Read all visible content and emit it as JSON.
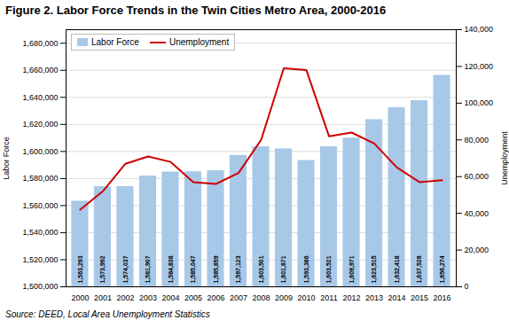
{
  "chart_data": {
    "type": "bar",
    "title": "Figure 2. Labor Force Trends in the Twin Cities Metro Area, 2000-2016",
    "caption": "Source: DEED, Local Area Unemployment Statistics",
    "x": [
      2000,
      2001,
      2002,
      2003,
      2004,
      2005,
      2006,
      2007,
      2008,
      2009,
      2010,
      2011,
      2012,
      2013,
      2014,
      2015,
      2016
    ],
    "series": [
      {
        "name": "Labor Force",
        "type": "bar",
        "color": "#a8c8e8",
        "data_labels": true,
        "values": [
          1563293,
          1573992,
          1574037,
          1581907,
          1584838,
          1585047,
          1585859,
          1597123,
          1603501,
          1601871,
          1593386,
          1603521,
          1609971,
          1623515,
          1632418,
          1637528,
          1656274
        ],
        "value_labels": [
          "1,563,293",
          "1,573,992",
          "1,574,037",
          "1,581,907",
          "1,584,838",
          "1,585,047",
          "1,585,859",
          "1,597,123",
          "1,603,501",
          "1,601,871",
          "1,593,386",
          "1,603,521",
          "1,609,971",
          "1,623,515",
          "1,632,418",
          "1,637,528",
          "1,656,274"
        ]
      },
      {
        "name": "Unemployment",
        "type": "line",
        "color": "#cc0000",
        "axis": "y2",
        "values": [
          42000,
          52000,
          67000,
          71000,
          68000,
          57000,
          56000,
          62000,
          80000,
          119000,
          118000,
          82000,
          84000,
          78000,
          65000,
          57000,
          58000
        ]
      }
    ],
    "ylabel": "Labor Force",
    "y2label": "Unemployment",
    "ylim": [
      1500000,
      1690000
    ],
    "yticks": [
      {
        "value": 1500000,
        "label": "1,500,000"
      },
      {
        "value": 1520000,
        "label": "1,520,000"
      },
      {
        "value": 1540000,
        "label": "1,540,000"
      },
      {
        "value": 1560000,
        "label": "1,560,000"
      },
      {
        "value": 1580000,
        "label": "1,580,000"
      },
      {
        "value": 1600000,
        "label": "1,600,000"
      },
      {
        "value": 1620000,
        "label": "1,620,000"
      },
      {
        "value": 1640000,
        "label": "1,640,000"
      },
      {
        "value": 1660000,
        "label": "1,660,000"
      },
      {
        "value": 1680000,
        "label": "1,680,000"
      }
    ],
    "y2lim": [
      0,
      140000
    ],
    "y2ticks": [
      0,
      {
        "value": 20000,
        "label": "20,000"
      },
      {
        "value": 40000,
        "label": "40,000"
      },
      {
        "value": 60000,
        "label": "60,000"
      },
      {
        "value": 80000,
        "label": "80,000"
      },
      {
        "value": 100000,
        "label": "100,000"
      },
      {
        "value": 120000,
        "label": "120,000"
      },
      {
        "value": 140000,
        "label": "140,000"
      }
    ],
    "grid": true,
    "legend": "upper left"
  }
}
